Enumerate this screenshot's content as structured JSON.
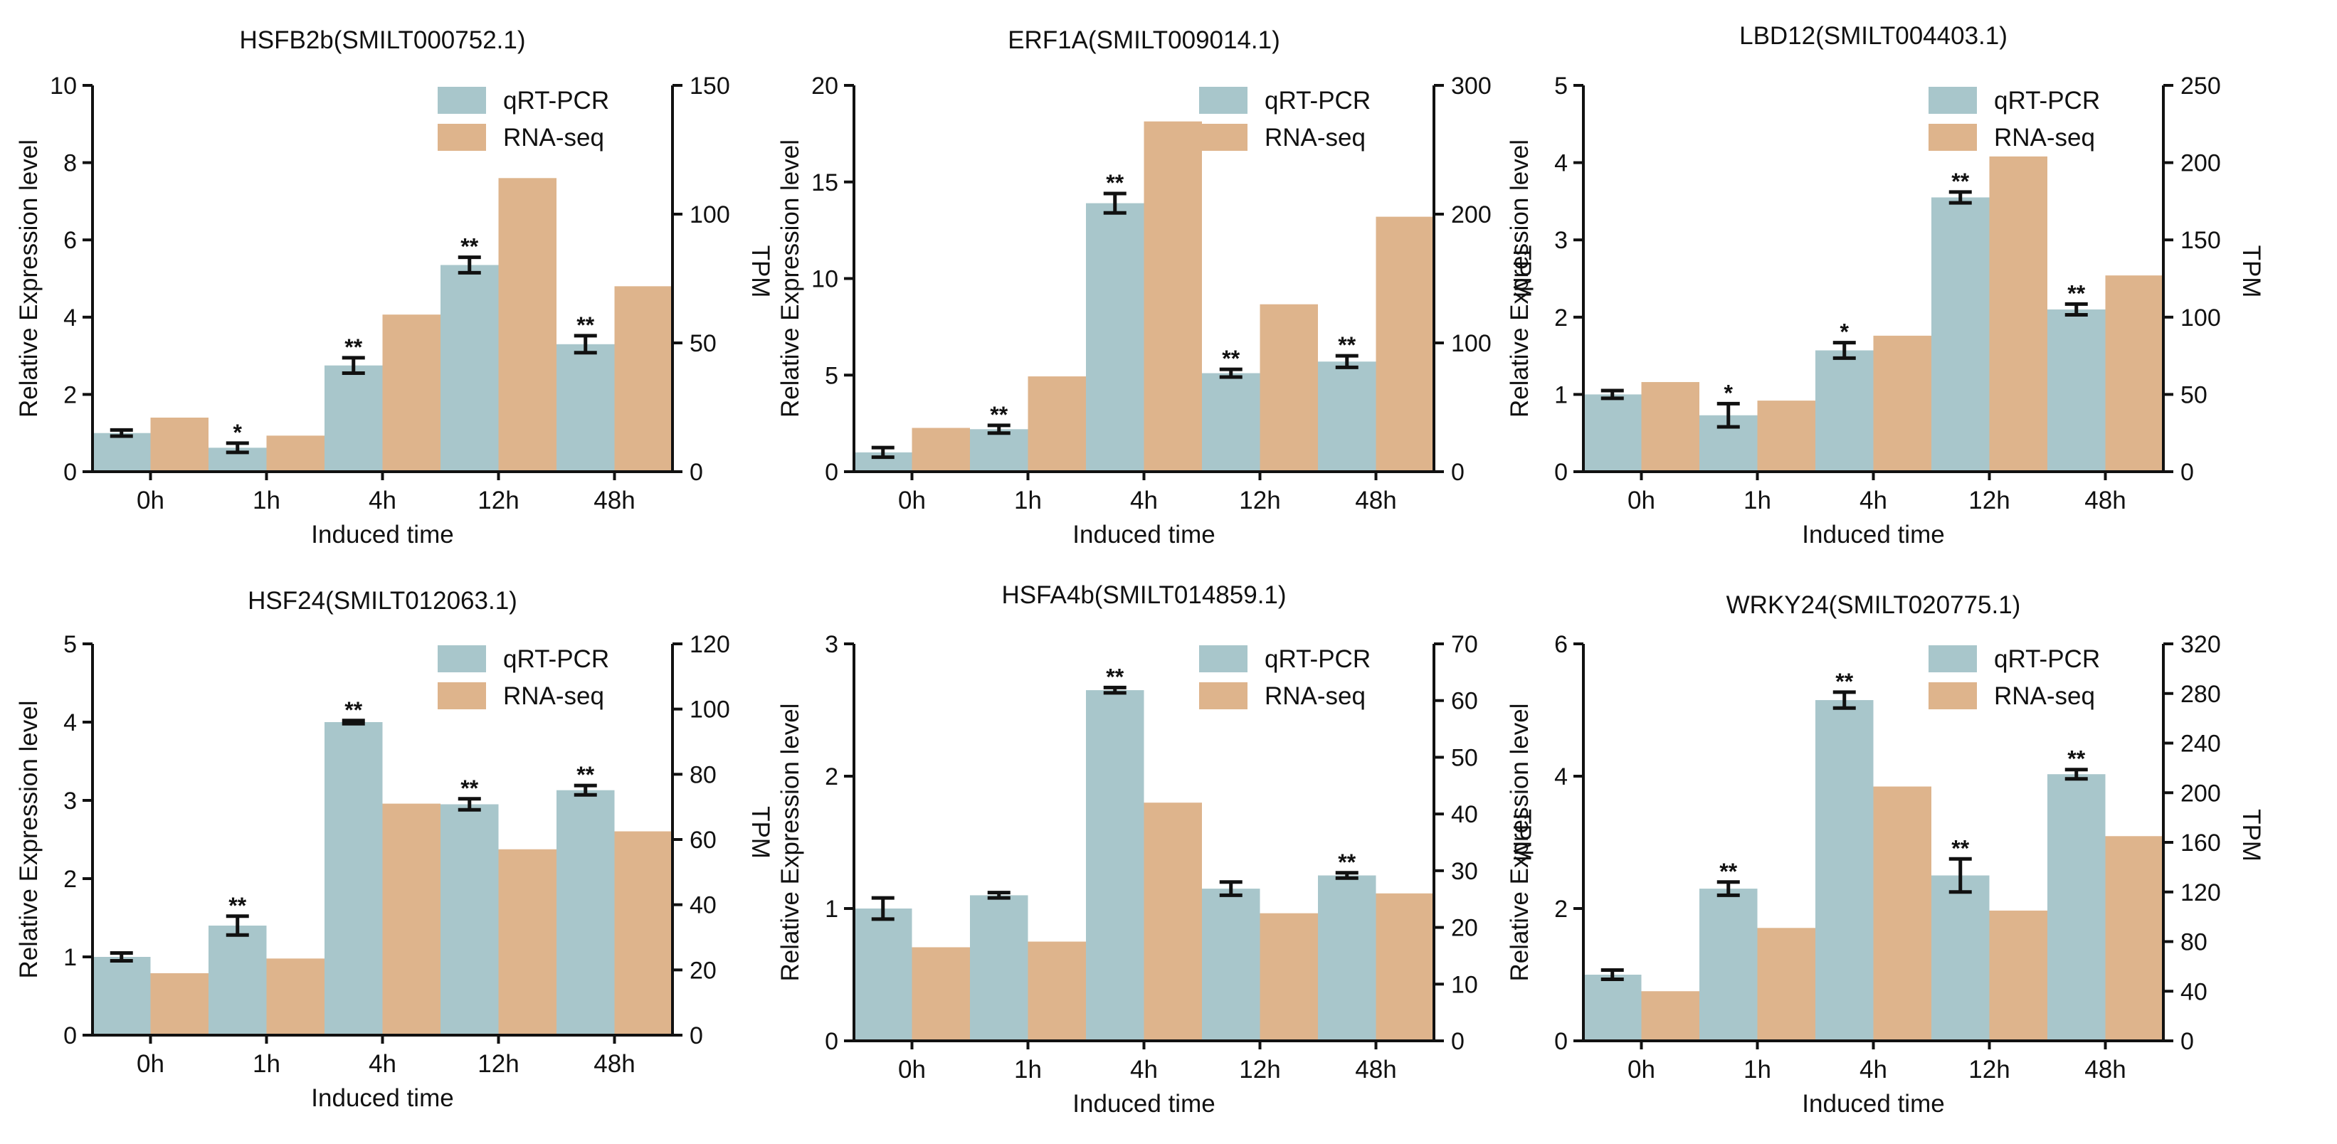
{
  "colors": {
    "qrt": "#a8c6cb",
    "rna": "#deb48c",
    "axis": "#111111"
  },
  "chart_data": [
    {
      "type": "bar",
      "title": "HSFB2b(SMILT000752.1)",
      "xlabel": "Induced time",
      "ylabel": "Relative Expression level",
      "y2label": "TPM",
      "categories": [
        "0h",
        "1h",
        "4h",
        "12h",
        "48h"
      ],
      "ylim": [
        0,
        10
      ],
      "yticks": [
        "0",
        "2",
        "4",
        "6",
        "8",
        "10"
      ],
      "y2lim": [
        0,
        150
      ],
      "y2ticks": [
        "0",
        "50",
        "100",
        "150"
      ],
      "legend": [
        "qRT-PCR",
        "RNA-seq"
      ],
      "series": [
        {
          "name": "qRT-PCR",
          "axis": "left",
          "values": [
            1.0,
            0.62,
            2.75,
            5.35,
            3.3
          ],
          "errors": [
            0.08,
            0.12,
            0.2,
            0.2,
            0.22
          ],
          "annotations": [
            "",
            "*",
            "**",
            "**",
            "**"
          ]
        },
        {
          "name": "RNA-seq",
          "axis": "right",
          "values": [
            21,
            14,
            61,
            114,
            72
          ]
        }
      ]
    },
    {
      "type": "bar",
      "title": "ERF1A(SMILT009014.1)",
      "xlabel": "Induced time",
      "ylabel": "Relative Expression level",
      "y2label": "TPM",
      "categories": [
        "0h",
        "1h",
        "4h",
        "12h",
        "48h"
      ],
      "ylim": [
        0,
        20
      ],
      "yticks": [
        "0",
        "5",
        "10",
        "15",
        "20"
      ],
      "y2lim": [
        0,
        300
      ],
      "y2ticks": [
        "0",
        "100",
        "200",
        "300"
      ],
      "legend": [
        "qRT-PCR",
        "RNA-seq"
      ],
      "series": [
        {
          "name": "qRT-PCR",
          "axis": "left",
          "values": [
            1.0,
            2.2,
            13.9,
            5.1,
            5.7
          ],
          "errors": [
            0.25,
            0.2,
            0.5,
            0.2,
            0.3
          ],
          "annotations": [
            "",
            "**",
            "**",
            "**",
            "**"
          ]
        },
        {
          "name": "RNA-seq",
          "axis": "right",
          "values": [
            34,
            74,
            272,
            130,
            198
          ]
        }
      ]
    },
    {
      "type": "bar",
      "title": "LBD12(SMILT004403.1)",
      "xlabel": "Induced time",
      "ylabel": "Relative Expression level",
      "y2label": "TPM",
      "categories": [
        "0h",
        "1h",
        "4h",
        "12h",
        "48h"
      ],
      "ylim": [
        0,
        5
      ],
      "yticks": [
        "0",
        "1",
        "2",
        "3",
        "4",
        "5"
      ],
      "y2lim": [
        0,
        250
      ],
      "y2ticks": [
        "0",
        "50",
        "100",
        "150",
        "200",
        "250"
      ],
      "legend": [
        "qRT-PCR",
        "RNA-seq"
      ],
      "series": [
        {
          "name": "qRT-PCR",
          "axis": "left",
          "values": [
            1.0,
            0.73,
            1.57,
            3.55,
            2.1
          ],
          "errors": [
            0.05,
            0.15,
            0.1,
            0.07,
            0.07
          ],
          "annotations": [
            "",
            "*",
            "*",
            "**",
            "**"
          ]
        },
        {
          "name": "RNA-seq",
          "axis": "right",
          "values": [
            58,
            46,
            88,
            204,
            127
          ]
        }
      ]
    },
    {
      "type": "bar",
      "title": "HSF24(SMILT012063.1)",
      "xlabel": "Induced time",
      "ylabel": "Relative Expression level",
      "y2label": "TPM",
      "categories": [
        "0h",
        "1h",
        "4h",
        "12h",
        "48h"
      ],
      "ylim": [
        0,
        5
      ],
      "yticks": [
        "0",
        "1",
        "2",
        "3",
        "4",
        "5"
      ],
      "y2lim": [
        0,
        120
      ],
      "y2ticks": [
        "0",
        "20",
        "40",
        "60",
        "80",
        "100",
        "120"
      ],
      "legend": [
        "qRT-PCR",
        "RNA-seq"
      ],
      "series": [
        {
          "name": "qRT-PCR",
          "axis": "left",
          "values": [
            1.0,
            1.4,
            4.0,
            2.95,
            3.13
          ],
          "errors": [
            0.05,
            0.12,
            0.02,
            0.07,
            0.06
          ],
          "annotations": [
            "",
            "**",
            "**",
            "**",
            "**"
          ]
        },
        {
          "name": "RNA-seq",
          "axis": "right",
          "values": [
            19,
            23.5,
            71,
            57,
            62.5
          ]
        }
      ]
    },
    {
      "type": "bar",
      "title": "HSFA4b(SMILT014859.1)",
      "xlabel": "Induced time",
      "ylabel": "Relative Expression level",
      "y2label": "TPM",
      "categories": [
        "0h",
        "1h",
        "4h",
        "12h",
        "48h"
      ],
      "ylim": [
        0,
        3
      ],
      "yticks": [
        "0",
        "1",
        "2",
        "3"
      ],
      "y2lim": [
        0,
        70
      ],
      "y2ticks": [
        "0",
        "10",
        "20",
        "30",
        "40",
        "50",
        "60",
        "70"
      ],
      "legend": [
        "qRT-PCR",
        "RNA-seq"
      ],
      "series": [
        {
          "name": "qRT-PCR",
          "axis": "left",
          "values": [
            1.0,
            1.1,
            2.65,
            1.15,
            1.25
          ],
          "errors": [
            0.08,
            0.02,
            0.02,
            0.05,
            0.02
          ],
          "annotations": [
            "",
            "",
            "**",
            "",
            "**"
          ]
        },
        {
          "name": "RNA-seq",
          "axis": "right",
          "values": [
            16.5,
            17.5,
            42,
            22.5,
            26
          ]
        }
      ]
    },
    {
      "type": "bar",
      "title": "WRKY24(SMILT020775.1)",
      "xlabel": "Induced time",
      "ylabel": "Relative Expression level",
      "y2label": "TPM",
      "categories": [
        "0h",
        "1h",
        "4h",
        "12h",
        "48h"
      ],
      "ylim": [
        0,
        6
      ],
      "yticks": [
        "0",
        "2",
        "4",
        "6"
      ],
      "y2lim": [
        0,
        320
      ],
      "y2ticks": [
        "0",
        "40",
        "80",
        "120",
        "160",
        "200",
        "240",
        "280",
        "320"
      ],
      "legend": [
        "qRT-PCR",
        "RNA-seq"
      ],
      "series": [
        {
          "name": "qRT-PCR",
          "axis": "left",
          "values": [
            1.0,
            2.3,
            5.15,
            2.5,
            4.03
          ],
          "errors": [
            0.07,
            0.1,
            0.12,
            0.25,
            0.07
          ],
          "annotations": [
            "",
            "**",
            "**",
            "**",
            "**"
          ]
        },
        {
          "name": "RNA-seq",
          "axis": "right",
          "values": [
            40,
            91,
            205,
            105,
            165
          ]
        }
      ]
    }
  ]
}
